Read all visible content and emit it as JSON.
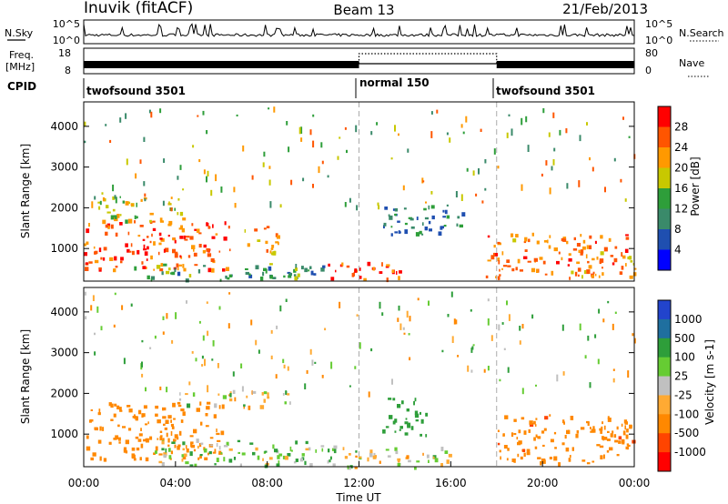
{
  "header": {
    "station": "Inuvik (fitACF)",
    "beam": "Beam 13",
    "date": "21/Feb/2013"
  },
  "noise_panel": {
    "left_label": "N.Sky",
    "left_ticks": [
      "10^5",
      "10^0"
    ],
    "right_ticks": [
      "10^5",
      "10^0"
    ],
    "right_label": "N.Search"
  },
  "freq_panel": {
    "left_label_1": "Freq.",
    "left_label_2": "[MHz]",
    "left_ticks": [
      "18",
      "8"
    ],
    "right_ticks": [
      "80",
      "0"
    ],
    "right_label": "Nave"
  },
  "cpid": {
    "label": "CPID",
    "segments": [
      {
        "name": "twofsound 3501",
        "start_h": 0,
        "end_h": 12
      },
      {
        "name": "normal 150",
        "start_h": 12,
        "end_h": 18
      },
      {
        "name": "twofsound 3501",
        "start_h": 18,
        "end_h": 24
      }
    ]
  },
  "colors": {
    "power_scale": [
      "#0000ff",
      "#1f4fb0",
      "#3a8a6a",
      "#2e9e3a",
      "#c8c800",
      "#ff9900",
      "#ff5500",
      "#ff0000"
    ],
    "velocity_scale": [
      "#ff0000",
      "#ff4400",
      "#ff8800",
      "#ffaa33",
      "#c0c0c0",
      "#66cc33",
      "#2e9e3a",
      "#1f6f9f",
      "#2244cc"
    ]
  },
  "chart_data": [
    {
      "type": "heatmap",
      "panel": "power",
      "ylabel": "Slant Range [km]",
      "y_ticks": [
        "4000",
        "3000",
        "2000",
        "1000"
      ],
      "ylim": [
        200,
        4600
      ],
      "xlim": [
        0,
        24
      ],
      "colorbar_label": "Power [dB]",
      "colorbar_ticks": [
        "28",
        "24",
        "20",
        "16",
        "12",
        "8",
        "4"
      ],
      "colorbar_range": [
        0,
        32
      ],
      "echo_regions": [
        {
          "t0": 0.0,
          "t1": 6.5,
          "r0": 500,
          "r1": 1700,
          "level": 26
        },
        {
          "t0": 0.5,
          "t1": 4.5,
          "r0": 1700,
          "r1": 2300,
          "level": 18
        },
        {
          "t0": 2.0,
          "t1": 10.5,
          "r0": 250,
          "r1": 650,
          "level": 12
        },
        {
          "t0": 7.0,
          "t1": 8.5,
          "r0": 900,
          "r1": 1600,
          "level": 22
        },
        {
          "t0": 10.5,
          "t1": 14.0,
          "r0": 250,
          "r1": 700,
          "level": 27
        },
        {
          "t0": 13.0,
          "t1": 16.5,
          "r0": 1300,
          "r1": 2100,
          "level": 9
        },
        {
          "t0": 17.5,
          "t1": 24.0,
          "r0": 300,
          "r1": 1400,
          "level": 24
        }
      ]
    },
    {
      "type": "heatmap",
      "panel": "velocity",
      "ylabel": "Slant Range [km]",
      "xlabel": "Time UT",
      "x_ticks": [
        "00:00",
        "04:00",
        "08:00",
        "12:00",
        "16:00",
        "20:00",
        "00:00"
      ],
      "y_ticks": [
        "4000",
        "3000",
        "2000",
        "1000"
      ],
      "ylim": [
        200,
        4600
      ],
      "xlim": [
        0,
        24
      ],
      "colorbar_label": "Velocity [m s-1]",
      "colorbar_ticks": [
        "1000",
        "500",
        "100",
        "25",
        "-25",
        "-100",
        "-500",
        "-1000"
      ],
      "echo_regions": [
        {
          "t0": 0.0,
          "t1": 6.0,
          "r0": 400,
          "r1": 1800,
          "velocity": -300
        },
        {
          "t0": 3.0,
          "t1": 11.0,
          "r0": 250,
          "r1": 900,
          "velocity": 50
        },
        {
          "t0": 4.0,
          "t1": 9.0,
          "r0": 1700,
          "r1": 2100,
          "velocity": 0
        },
        {
          "t0": 11.0,
          "t1": 16.0,
          "r0": 200,
          "r1": 700,
          "velocity": 10
        },
        {
          "t0": 13.0,
          "t1": 15.0,
          "r0": 1000,
          "r1": 1900,
          "velocity": 300
        },
        {
          "t0": 18.0,
          "t1": 24.0,
          "r0": 300,
          "r1": 1500,
          "velocity": -400
        }
      ]
    }
  ]
}
